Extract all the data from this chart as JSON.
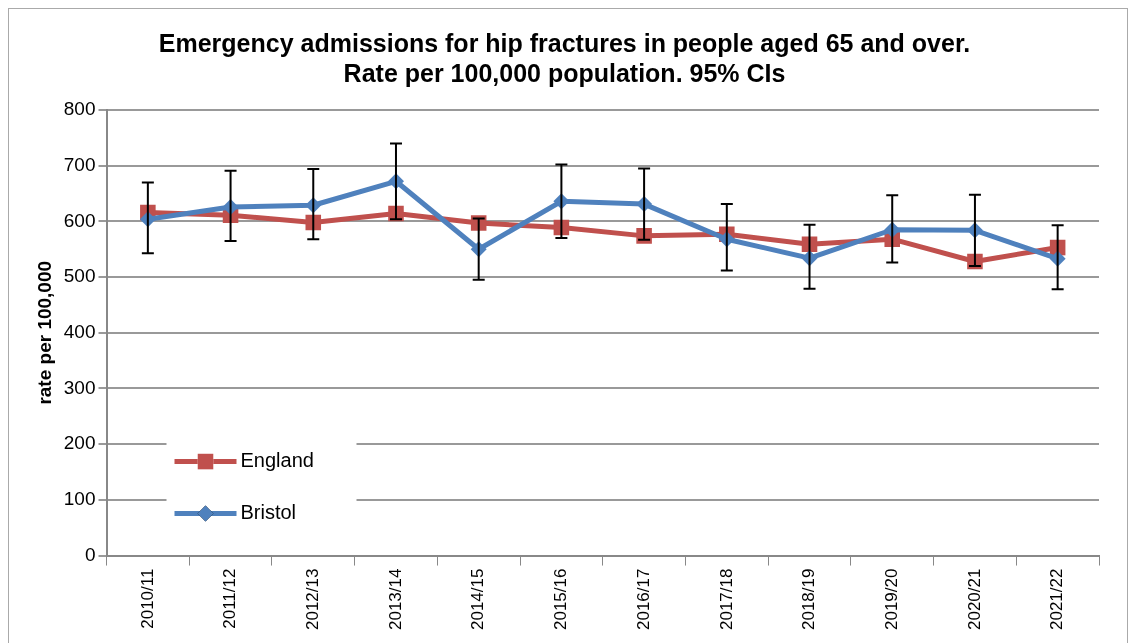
{
  "chart_data": {
    "type": "line",
    "title": "Emergency admissions for hip fractures in people aged 65 and over. Rate per 100,000 population. 95% CIs",
    "ylabel": "rate per 100,000",
    "categories": [
      "2010/11",
      "2011/12",
      "2012/13",
      "2013/14",
      "2014/15",
      "2015/16",
      "2016/17",
      "2017/18",
      "2018/19",
      "2019/20",
      "2020/21",
      "2021/22"
    ],
    "series": [
      {
        "name": "England",
        "color": "#c0504d",
        "marker": "square",
        "values": [
          616,
          611,
          598,
          614,
          597,
          589,
          574,
          577,
          559,
          568,
          528,
          553
        ]
      },
      {
        "name": "Bristol",
        "color": "#4f81bd",
        "marker": "diamond",
        "values": [
          604,
          626,
          629,
          672,
          550,
          636,
          631,
          568,
          534,
          585,
          584,
          533
        ],
        "errors": [
          [
            543,
            670
          ],
          [
            565,
            691
          ],
          [
            568,
            694
          ],
          [
            604,
            740
          ],
          [
            495,
            605
          ],
          [
            570,
            702
          ],
          [
            567,
            695
          ],
          [
            512,
            631
          ],
          [
            479,
            594
          ],
          [
            526,
            647
          ],
          [
            520,
            648
          ],
          [
            478,
            593
          ]
        ]
      }
    ],
    "ylim": [
      0,
      800
    ],
    "yticks": [
      0,
      100,
      200,
      300,
      400,
      500,
      600,
      700,
      800
    ],
    "grid": "y",
    "legend": "bottom left",
    "line_style": "solid"
  }
}
